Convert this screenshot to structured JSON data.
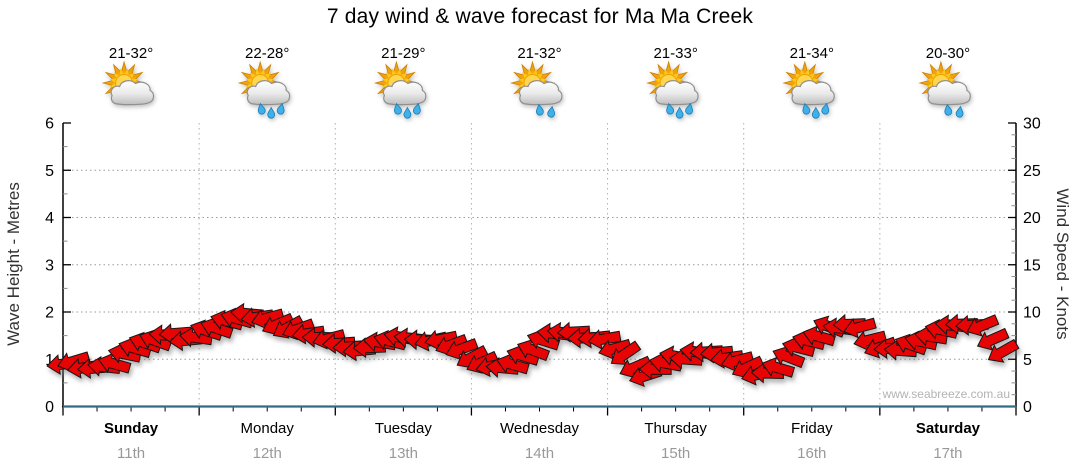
{
  "title": "7 day wind & wave forecast for Ma Ma Creek",
  "watermark": "www.seabreeze.com.au",
  "colors": {
    "arrow": "#e60404",
    "arrow_outline": "#161616",
    "wave_line": "#336b87",
    "grid_horizontal": "#9a9a9a",
    "grid_vertical": "#b0b0b0",
    "axis": "#000000",
    "minor_tick": "#8c8c8c",
    "date_text": "#999999",
    "day_text": "#000000",
    "watermark_text": "#b3b3b3"
  },
  "forecast_days": [
    {
      "name": "Sunday",
      "date": "11th",
      "temp_range": "21-32°",
      "icon": "partly-cloudy",
      "bold": true
    },
    {
      "name": "Monday",
      "date": "12th",
      "temp_range": "22-28°",
      "icon": "showers",
      "bold": false
    },
    {
      "name": "Tuesday",
      "date": "13th",
      "temp_range": "21-29°",
      "icon": "showers",
      "bold": false
    },
    {
      "name": "Wednesday",
      "date": "14th",
      "temp_range": "21-32°",
      "icon": "light-showers",
      "bold": false
    },
    {
      "name": "Thursday",
      "date": "15th",
      "temp_range": "21-33°",
      "icon": "showers",
      "bold": false
    },
    {
      "name": "Friday",
      "date": "16th",
      "temp_range": "21-34°",
      "icon": "showers",
      "bold": false
    },
    {
      "name": "Saturday",
      "date": "17th",
      "temp_range": "20-30°",
      "icon": "light-showers",
      "bold": true
    }
  ],
  "chart_data": {
    "type": "line",
    "style": "wind-direction-arrows-time-series",
    "title": "7 day wind & wave forecast for Ma Ma Creek",
    "left_axis": {
      "label": "Wave Height - Metres",
      "range": [
        0,
        6
      ],
      "major_tick": 1,
      "minor_tick": 0.5,
      "tick_labels": [
        "0",
        "1",
        "2",
        "3",
        "4",
        "5",
        "6"
      ]
    },
    "right_axis": {
      "label": "Wind Speed - Knots",
      "range": [
        0,
        30
      ],
      "major_tick": 5,
      "minor_tick": 1.25,
      "tick_labels": [
        "0",
        "5",
        "10",
        "15",
        "20",
        "25",
        "30"
      ]
    },
    "x_axis": {
      "range_hours": [
        0,
        168
      ],
      "major_tick_hours": 24,
      "minor_tick_hours": 6,
      "day_labels_from": "forecast_days"
    },
    "grid": {
      "horizontal": "dotted lines at 1-5 m (5-25 knots)",
      "vertical": "dashed lines at day boundaries",
      "legend": "none"
    },
    "series": [
      {
        "name": "Wind Speed",
        "unit": "knots",
        "marker": "red-arrow",
        "color": "#e60404",
        "point_format": [
          "hour",
          "knots",
          "tilt_deg_up_positive"
        ],
        "points": [
          [
            0,
            4.8,
            -5
          ],
          [
            3,
            4.2,
            -15
          ],
          [
            6,
            3.9,
            -5
          ],
          [
            9,
            4.6,
            15
          ],
          [
            12,
            5.8,
            20
          ],
          [
            15,
            7,
            20
          ],
          [
            18,
            7.8,
            10
          ],
          [
            21,
            7.3,
            -5
          ],
          [
            24,
            7.6,
            10
          ],
          [
            27,
            8.6,
            20
          ],
          [
            30,
            9.3,
            15
          ],
          [
            33,
            9.8,
            0
          ],
          [
            36,
            9.4,
            -20
          ],
          [
            39,
            8.4,
            -25
          ],
          [
            42,
            7.8,
            -10
          ],
          [
            45,
            7.3,
            -5
          ],
          [
            48,
            6.5,
            -10
          ],
          [
            51,
            6.2,
            -5
          ],
          [
            54,
            6.4,
            5
          ],
          [
            57,
            6.8,
            10
          ],
          [
            60,
            7.2,
            5
          ],
          [
            63,
            7.4,
            0
          ],
          [
            66,
            7.2,
            -10
          ],
          [
            69,
            6.6,
            -15
          ],
          [
            72,
            5.5,
            -25
          ],
          [
            75,
            4,
            -20
          ],
          [
            78,
            4.3,
            10
          ],
          [
            81,
            5.2,
            20
          ],
          [
            84,
            6.5,
            20
          ],
          [
            87,
            7.7,
            10
          ],
          [
            90,
            7.6,
            0
          ],
          [
            93,
            7.4,
            -5
          ],
          [
            96,
            7,
            -15
          ],
          [
            99,
            5.5,
            -30
          ],
          [
            102,
            2.9,
            -25
          ],
          [
            105,
            3.9,
            15
          ],
          [
            108,
            5,
            15
          ],
          [
            111,
            5.4,
            5
          ],
          [
            114,
            5.5,
            0
          ],
          [
            117,
            5.2,
            -10
          ],
          [
            120,
            4.3,
            -25
          ],
          [
            123,
            3,
            -20
          ],
          [
            126,
            4.1,
            20
          ],
          [
            129,
            5.6,
            20
          ],
          [
            132,
            7,
            20
          ],
          [
            135,
            8.2,
            15
          ],
          [
            138,
            8.6,
            0
          ],
          [
            141,
            7.9,
            -20
          ],
          [
            144,
            6.2,
            -15
          ],
          [
            147,
            5.6,
            5
          ],
          [
            150,
            6.4,
            15
          ],
          [
            153,
            7.4,
            15
          ],
          [
            156,
            8.4,
            10
          ],
          [
            159,
            9.2,
            0
          ],
          [
            162,
            8.3,
            -25
          ],
          [
            165,
            6.3,
            -30
          ],
          [
            168,
            4.6,
            -20
          ]
        ]
      },
      {
        "name": "Wave Height",
        "unit": "m",
        "constant_value": 0,
        "color": "#336b87"
      }
    ]
  }
}
